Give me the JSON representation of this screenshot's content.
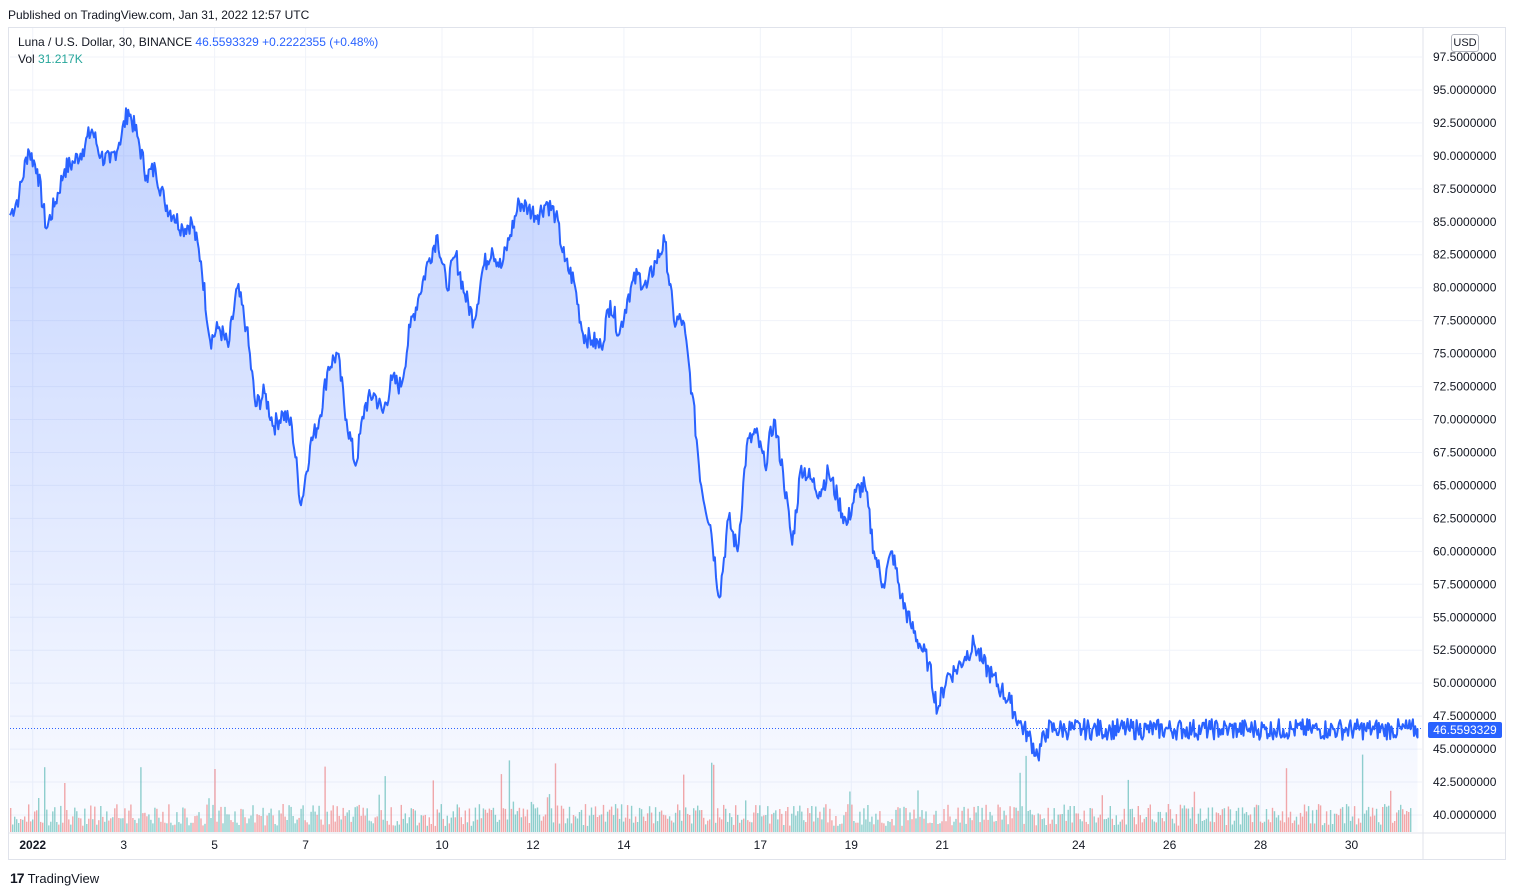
{
  "published": "Published on TradingView.com, Jan 31, 2022 12:57 UTC",
  "legend": {
    "symbol": "Luna / U.S. Dollar, 30, BINANCE",
    "price": "46.5593329",
    "change": "+0.2222355 (+0.48%)",
    "vol_label": "Vol",
    "vol_value": "31.217K"
  },
  "currency": "USD",
  "last_price_label": "46.5593329",
  "footer": {
    "brand": "TradingView"
  },
  "colors": {
    "line": "#2962ff",
    "vol_up": "#26a69a",
    "vol_down": "#ef5350",
    "grid": "#f0f3fa"
  },
  "chart_data": {
    "type": "area",
    "title": "Luna / U.S. Dollar, 30, BINANCE",
    "ylim": [
      39,
      99
    ],
    "y_ticks": [
      "40.0000000",
      "42.5000000",
      "45.0000000",
      "47.5000000",
      "50.0000000",
      "52.5000000",
      "55.0000000",
      "57.5000000",
      "60.0000000",
      "62.5000000",
      "65.0000000",
      "67.5000000",
      "70.0000000",
      "72.5000000",
      "75.0000000",
      "77.5000000",
      "80.0000000",
      "82.5000000",
      "85.0000000",
      "87.5000000",
      "90.0000000",
      "92.5000000",
      "95.0000000",
      "97.5000000"
    ],
    "x_ticks": [
      {
        "label": "2022",
        "day": 1
      },
      {
        "label": "3",
        "day": 3
      },
      {
        "label": "5",
        "day": 5
      },
      {
        "label": "7",
        "day": 7
      },
      {
        "label": "10",
        "day": 10
      },
      {
        "label": "12",
        "day": 12
      },
      {
        "label": "14",
        "day": 14
      },
      {
        "label": "17",
        "day": 17
      },
      {
        "label": "19",
        "day": 19
      },
      {
        "label": "21",
        "day": 21
      },
      {
        "label": "24",
        "day": 24
      },
      {
        "label": "26",
        "day": 26
      },
      {
        "label": "28",
        "day": 28
      },
      {
        "label": "30",
        "day": 30
      }
    ],
    "series": [
      {
        "x": [
          0.5,
          0.7,
          0.9,
          1.1,
          1.3,
          1.5,
          1.7,
          1.9,
          2.1,
          2.3,
          2.5,
          2.7,
          2.9,
          3.1,
          3.3,
          3.5,
          3.7,
          3.9,
          4.1,
          4.3,
          4.5,
          4.7,
          4.9,
          5.1,
          5.3,
          5.5,
          5.7,
          5.9,
          6.1,
          6.3,
          6.5,
          6.7,
          6.9,
          7.1,
          7.3,
          7.5,
          7.7,
          7.9,
          8.1,
          8.3,
          8.5,
          8.7,
          8.9,
          9.1,
          9.3,
          9.5,
          9.7,
          9.9,
          10.1,
          10.3,
          10.5,
          10.7,
          10.9,
          11.1,
          11.3,
          11.5,
          11.7,
          11.9,
          12.1,
          12.3,
          12.5,
          12.7,
          12.9,
          13.1,
          13.3,
          13.5,
          13.7,
          13.9,
          14.1,
          14.3,
          14.5,
          14.7,
          14.9,
          15.1,
          15.3,
          15.5,
          15.7,
          15.9,
          16.1,
          16.3,
          16.5,
          16.7,
          16.9,
          17.1,
          17.3,
          17.5,
          17.7,
          17.9,
          18.1,
          18.3,
          18.5,
          18.7,
          18.9,
          19.1,
          19.3,
          19.5,
          19.7,
          19.9,
          20.1,
          20.3,
          20.5,
          20.7,
          20.9,
          21.1,
          21.3,
          21.5,
          21.7,
          21.9,
          22.1,
          22.3,
          22.5,
          22.7,
          22.9,
          23.1,
          23.3,
          23.5,
          23.7,
          23.9,
          24.1,
          24.3,
          24.5,
          24.7,
          24.9,
          25.1,
          25.3,
          25.5,
          25.7,
          25.9,
          26.1,
          26.3,
          26.5,
          26.7,
          26.9,
          27.1,
          27.3,
          27.5,
          27.7,
          27.9,
          28.1,
          28.3,
          28.5,
          28.7,
          28.9,
          29.1,
          29.3,
          29.5,
          29.7,
          29.9,
          30.1,
          30.3,
          30.5,
          30.7,
          30.9,
          31.1,
          31.3,
          31.5
        ],
        "y": [
          85.5,
          87,
          90.5,
          89,
          84.5,
          86.5,
          89,
          89.5,
          90.5,
          92,
          90,
          89.5,
          91,
          93.5,
          91.5,
          88.5,
          89,
          86.5,
          85.5,
          84.5,
          85,
          82,
          76,
          77,
          75.5,
          80,
          77,
          71,
          72,
          69.5,
          70.5,
          69.5,
          63.5,
          68,
          70,
          74,
          75,
          70,
          66.5,
          71,
          72,
          70.5,
          73,
          72.5,
          77,
          79.5,
          82,
          84,
          80,
          82.5,
          79.5,
          77.5,
          81.5,
          83,
          81.5,
          84,
          86.5,
          86,
          85.5,
          86.5,
          85.5,
          82,
          80.5,
          76.5,
          76,
          75.5,
          79,
          76.5,
          79.5,
          81,
          80,
          82,
          83.5,
          77.5,
          77.5,
          72,
          65,
          62,
          56.5,
          62.5,
          60,
          68,
          69,
          66.5,
          70,
          66,
          60.5,
          66.5,
          65.5,
          64.5,
          66,
          64,
          62,
          64.5,
          65,
          60,
          57.5,
          60,
          56.5,
          54.5,
          53,
          51.5,
          48,
          50.5,
          51,
          52,
          53,
          51.5,
          50.5,
          49.5,
          48.5,
          47,
          46,
          44.5,
          46.5,
          46.5,
          46.5,
          46.5,
          46.5,
          46.5,
          46.5,
          46.5,
          46.5,
          46.5,
          46.5,
          46.5,
          46.5,
          46.5,
          46.5,
          46.5,
          46.5,
          46.5,
          46.5,
          46.5,
          46.5,
          46.5,
          46.5,
          46.5,
          46.5,
          46.5,
          46.5,
          46.5,
          46.5,
          46.5,
          46.5,
          46.5,
          46.5,
          46.5,
          46.5,
          46.5,
          46.5,
          46.5,
          46.5,
          46.5,
          46.5,
          46.5
        ]
      }
    ]
  }
}
